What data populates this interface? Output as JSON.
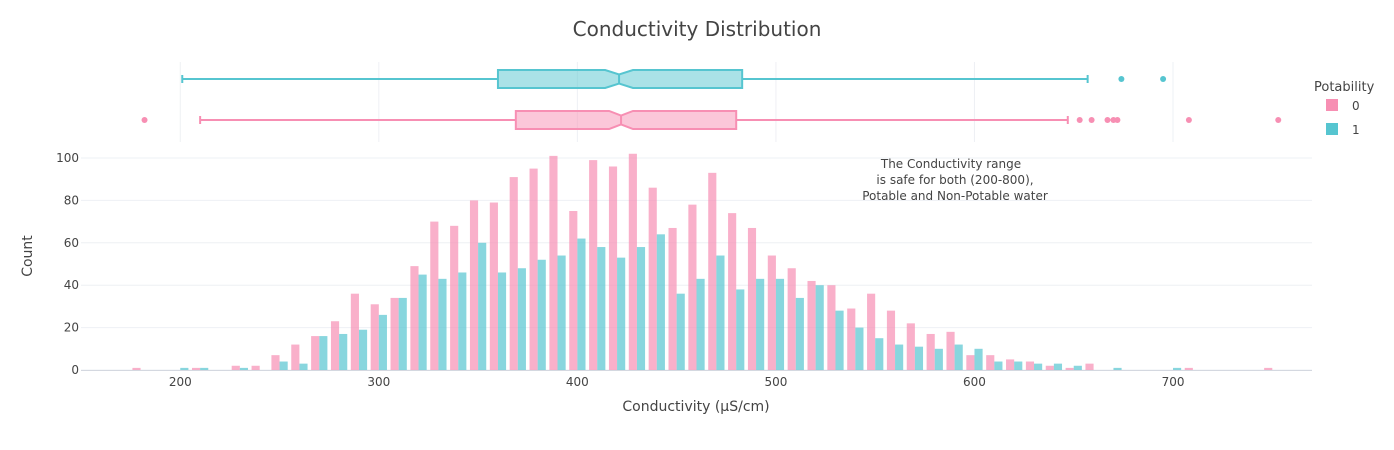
{
  "chart_data": {
    "type": "bar",
    "title": "Conductivity Distribution",
    "xlabel": "Conductivity (μS/cm)",
    "ylabel": "Count",
    "xlim": [
      150,
      770
    ],
    "ylim": [
      0,
      105
    ],
    "x_ticks": [
      "200",
      "300",
      "400",
      "500",
      "600",
      "700"
    ],
    "y_ticks": [
      "0",
      "20",
      "40",
      "60",
      "80",
      "100"
    ],
    "grid": true,
    "legend_position": "right",
    "legend": {
      "title": "Potability",
      "entries": [
        {
          "label": "0",
          "color": "#f78fb3"
        },
        {
          "label": "1",
          "color": "#56c5d0"
        }
      ]
    },
    "annotation": {
      "lines": [
        "The Conductivity range",
        "is safe for both (200-800),",
        "Potable and Non-Potable water"
      ]
    },
    "bin_width": 10,
    "bin_centers": [
      180,
      190,
      200,
      210,
      220,
      230,
      240,
      250,
      260,
      270,
      280,
      290,
      300,
      310,
      320,
      330,
      340,
      350,
      360,
      370,
      380,
      390,
      400,
      410,
      420,
      430,
      440,
      450,
      460,
      470,
      480,
      490,
      500,
      510,
      520,
      530,
      540,
      550,
      560,
      570,
      580,
      590,
      600,
      610,
      620,
      630,
      640,
      650,
      660,
      670,
      680,
      690,
      700,
      710,
      720,
      730,
      740,
      750
    ],
    "series": [
      {
        "name": "0",
        "color": "#f78fb3",
        "values": [
          1,
          0,
          0,
          1,
          0,
          2,
          2,
          7,
          12,
          16,
          23,
          36,
          31,
          34,
          49,
          70,
          68,
          80,
          79,
          91,
          95,
          101,
          75,
          99,
          96,
          102,
          86,
          67,
          78,
          93,
          74,
          67,
          54,
          48,
          42,
          40,
          29,
          36,
          28,
          22,
          17,
          18,
          7,
          7,
          5,
          4,
          2,
          1,
          3,
          0,
          0,
          0,
          0,
          1,
          0,
          0,
          0,
          1
        ]
      },
      {
        "name": "1",
        "color": "#56c5d0",
        "values": [
          0,
          0,
          1,
          1,
          0,
          1,
          0,
          4,
          3,
          16,
          17,
          19,
          26,
          34,
          45,
          43,
          46,
          60,
          46,
          48,
          52,
          54,
          62,
          58,
          53,
          58,
          64,
          36,
          43,
          54,
          38,
          43,
          43,
          34,
          40,
          28,
          20,
          15,
          12,
          11,
          10,
          12,
          10,
          4,
          4,
          3,
          3,
          2,
          0,
          1,
          0,
          0,
          1,
          0,
          0,
          0,
          0,
          0
        ]
      }
    ],
    "box_plots": [
      {
        "name": "1",
        "color": "#56c5d0",
        "whisker_low": 201,
        "q1": 360,
        "median": 421,
        "q3": 483,
        "whisker_high": 657,
        "notch_low": 414,
        "notch_high": 428,
        "outliers": [
          674,
          695
        ]
      },
      {
        "name": "0",
        "color": "#f78fb3",
        "whisker_low": 210,
        "q1": 369,
        "median": 422,
        "q3": 480,
        "whisker_high": 647,
        "notch_low": 416,
        "notch_high": 428,
        "outliers": [
          182,
          653,
          659,
          667,
          670,
          672,
          708,
          753
        ]
      }
    ]
  }
}
